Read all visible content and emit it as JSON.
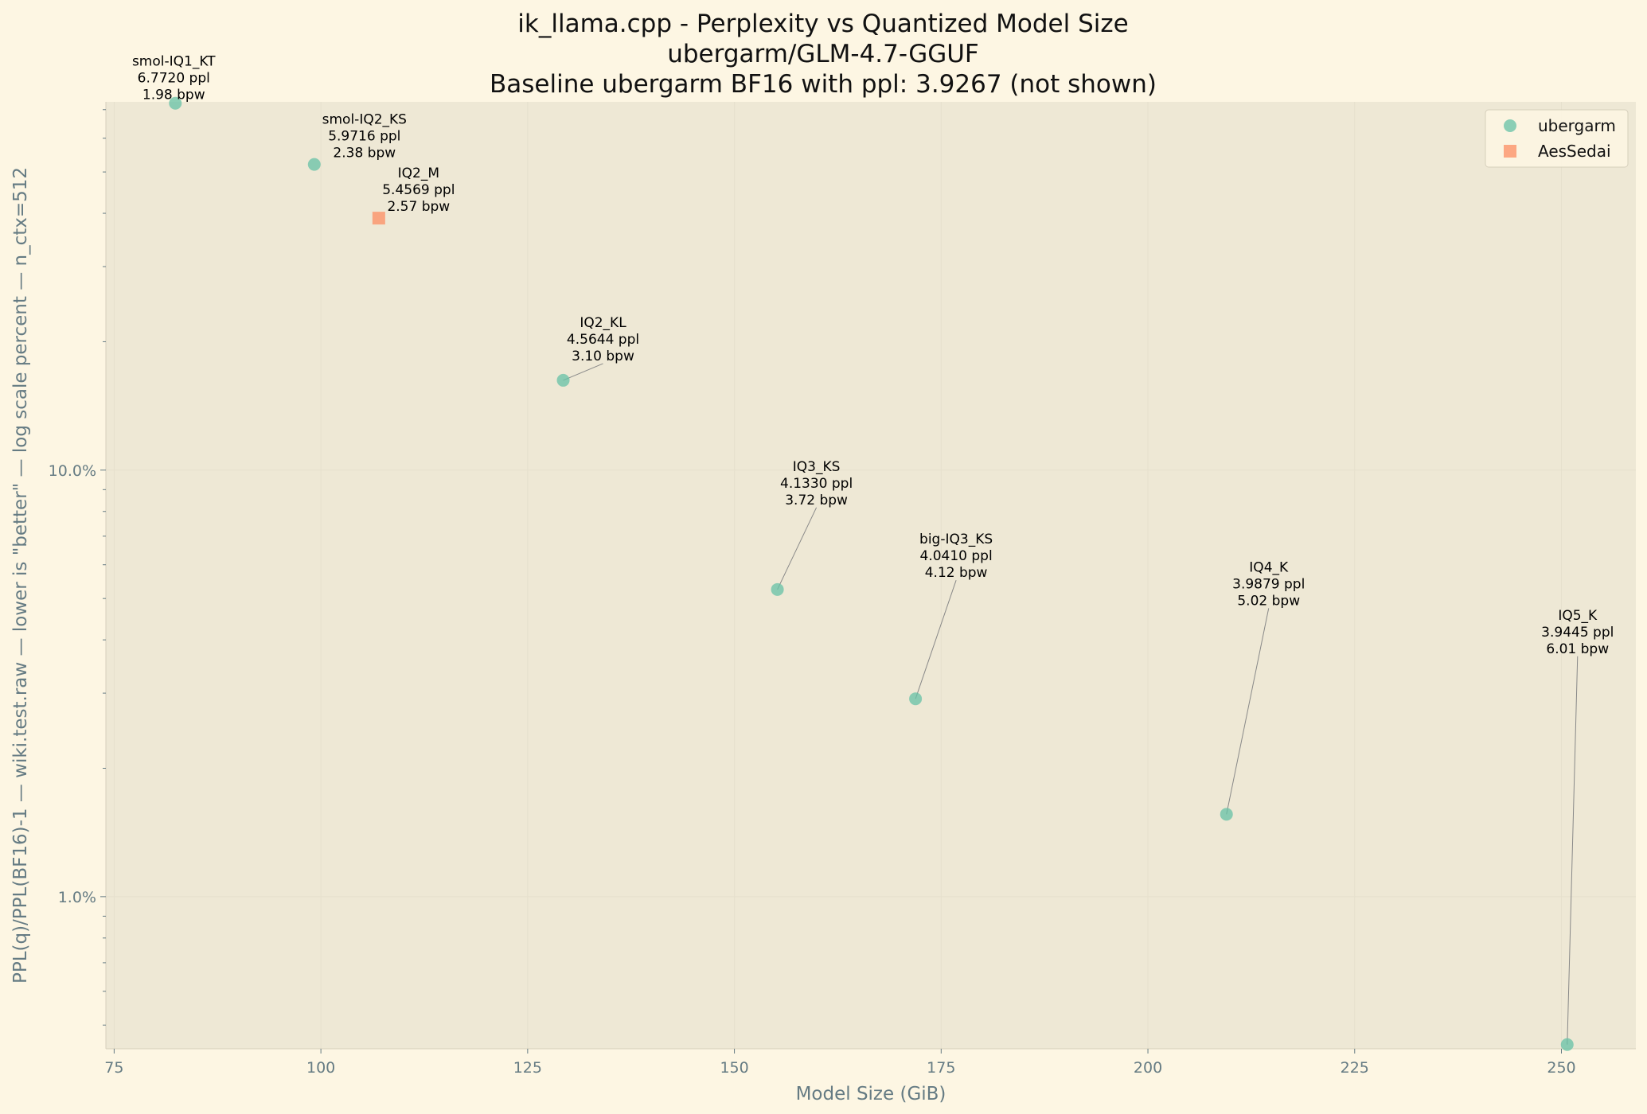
{
  "chart_data": {
    "type": "scatter",
    "title": [
      "ik_llama.cpp - Perplexity vs Quantized Model Size",
      "ubergarm/GLM-4.7-GGUF",
      "Baseline ubergarm BF16 with ppl: 3.9267 (not shown)"
    ],
    "xlabel": "Model Size (GiB)",
    "ylabel": "PPL(q)/PPL(BF16)-1 — wiki.test.raw — lower is \"better\" — log scale percent — n_ctx=512",
    "xlim": [
      74,
      259
    ],
    "ylim": [
      0.44,
      73
    ],
    "yscale": "log",
    "x_ticks": [
      75,
      100,
      125,
      150,
      175,
      200,
      225,
      250
    ],
    "y_ticks": [
      {
        "value": 1.0,
        "label": "1.0%"
      },
      {
        "value": 10.0,
        "label": "10.0%"
      }
    ],
    "grid": true,
    "legend_position": "top-right",
    "baseline_ppl": 3.9267,
    "series": [
      {
        "name": "ubergarm",
        "marker": "circle",
        "color": "#66c2a5",
        "points": [
          {
            "label": "smol-IQ1_KT",
            "ppl": "6.7720",
            "bpw": "1.98",
            "x": 82.4,
            "y": 72.46
          },
          {
            "label": "smol-IQ2_KS",
            "ppl": "5.9716",
            "bpw": "2.38",
            "x": 99.2,
            "y": 52.08
          },
          {
            "label": "IQ2_KL",
            "ppl": "4.5644",
            "bpw": "3.10",
            "x": 129.3,
            "y": 16.24
          },
          {
            "label": "IQ3_KS",
            "ppl": "4.1330",
            "bpw": "3.72",
            "x": 155.2,
            "y": 5.25
          },
          {
            "label": "big-IQ3_KS",
            "ppl": "4.0410",
            "bpw": "4.12",
            "x": 171.9,
            "y": 2.91
          },
          {
            "label": "IQ4_K",
            "ppl": "3.9879",
            "bpw": "5.02",
            "x": 209.5,
            "y": 1.56
          },
          {
            "label": "IQ5_K",
            "ppl": "3.9445",
            "bpw": "6.01",
            "x": 250.7,
            "y": 0.45
          }
        ]
      },
      {
        "name": "AesSedai",
        "marker": "square",
        "color": "#fc8d62",
        "points": [
          {
            "label": "IQ2_M",
            "ppl": "5.4569",
            "bpw": "2.57",
            "x": 107.0,
            "y": 38.97
          }
        ]
      }
    ]
  }
}
